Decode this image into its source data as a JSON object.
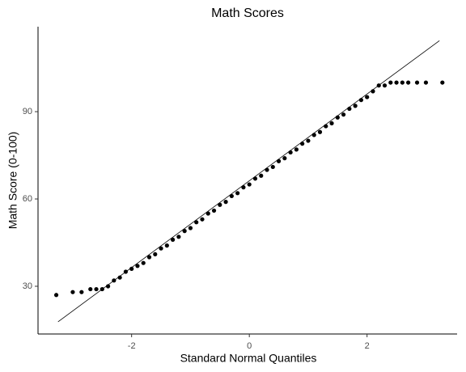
{
  "chart_data": {
    "type": "scatter",
    "title": "Math Scores",
    "x_label": "Standard Normal Quantiles",
    "y_label": "Math Score (0-100)",
    "color": "#000000",
    "grid": false,
    "xlim": [
      -3.59,
      3.53
    ],
    "ylim": [
      13.6,
      119.2
    ],
    "xticks": [
      -2,
      0,
      2
    ],
    "yticks": [
      30,
      60,
      90
    ],
    "x": [
      -3.28,
      -3.0,
      -2.85,
      -2.7,
      -2.6,
      -2.5,
      -2.4,
      -2.3,
      -2.2,
      -2.1,
      -2.0,
      -1.9,
      -1.8,
      -1.7,
      -1.6,
      -1.5,
      -1.4,
      -1.3,
      -1.2,
      -1.1,
      -1.0,
      -0.9,
      -0.8,
      -0.7,
      -0.6,
      -0.5,
      -0.4,
      -0.3,
      -0.2,
      -0.1,
      0,
      0.1,
      0.2,
      0.3,
      0.4,
      0.5,
      0.6,
      0.7,
      0.8,
      0.9,
      1.0,
      1.1,
      1.2,
      1.3,
      1.4,
      1.5,
      1.6,
      1.7,
      1.8,
      1.9,
      2.0,
      2.1,
      2.2,
      2.3,
      2.4,
      2.5,
      2.6,
      2.7,
      2.85,
      3.0,
      3.28
    ],
    "values": [
      27,
      28,
      28,
      29,
      29,
      29,
      30,
      32,
      33,
      35,
      36,
      37,
      38,
      40,
      41,
      43,
      44,
      46,
      47,
      49,
      50,
      52,
      53,
      55,
      56,
      58,
      59,
      61,
      62,
      64,
      65,
      67,
      68,
      70,
      71,
      73,
      74,
      76,
      77,
      79,
      80,
      82,
      83,
      85,
      86,
      88,
      89,
      91,
      92,
      94,
      95,
      97,
      99,
      99,
      100,
      100,
      100,
      100,
      100,
      100,
      100
    ],
    "reference_line": {
      "x": [
        -3.25,
        3.23
      ],
      "y": [
        17.8,
        114.4
      ]
    }
  }
}
